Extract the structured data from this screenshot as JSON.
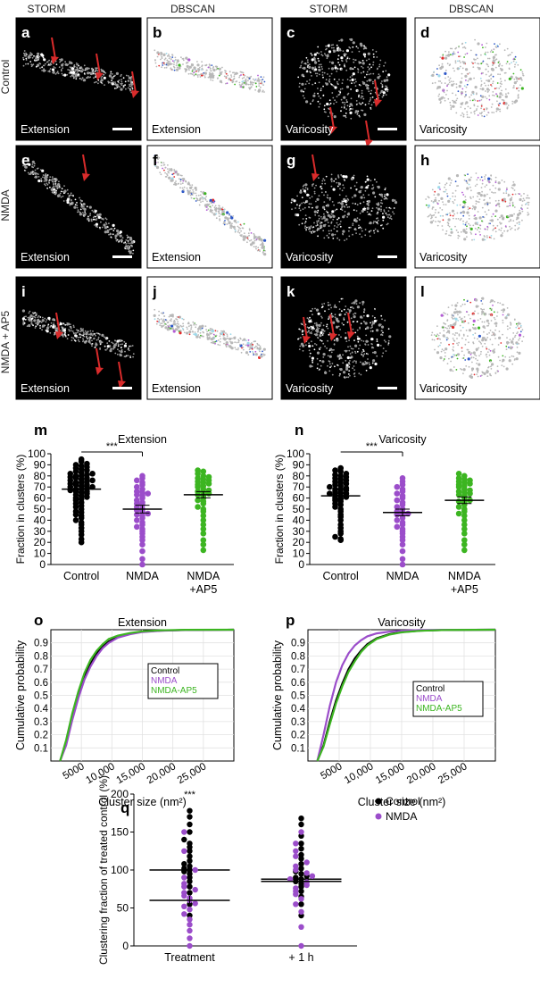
{
  "column_headers": [
    "STORM",
    "DBSCAN",
    "STORM",
    "DBSCAN"
  ],
  "row_labels": [
    "Control",
    "NMDA",
    "NMDA + AP5"
  ],
  "panel_letters": [
    "a",
    "b",
    "c",
    "d",
    "e",
    "f",
    "g",
    "h",
    "i",
    "j",
    "k",
    "l",
    "m",
    "n",
    "o",
    "p",
    "q"
  ],
  "panel_captions": [
    "Extension",
    "Extension",
    "Varicosity",
    "Varicosity"
  ],
  "colors": {
    "control": "#000000",
    "nmda": "#9b4dca",
    "nmda_ap5": "#3cb521",
    "arrow": "#d92b2b",
    "cluster_colors": [
      "#e52b2b",
      "#2e58c8",
      "#3cb521",
      "#b35bd6",
      "#9fd9ea"
    ]
  },
  "chart_data": [
    {
      "panel": "m",
      "type": "scatter",
      "title": "Extension",
      "ylabel": "Fraction in clusters (%)",
      "categories": [
        "Control",
        "NMDA",
        "NMDA\n+AP5"
      ],
      "ylim": [
        0,
        100
      ],
      "yticks": [
        0,
        10,
        20,
        30,
        40,
        50,
        60,
        70,
        80,
        90,
        100
      ],
      "significance": {
        "label": "***",
        "between": [
          0,
          1
        ]
      },
      "series": [
        {
          "color": "#000000",
          "mean": 68,
          "sem": 2.5,
          "values": [
            20,
            23,
            27,
            30,
            33,
            36,
            38,
            40,
            42,
            44,
            45,
            47,
            48,
            50,
            52,
            53,
            55,
            56,
            58,
            59,
            60,
            61,
            62,
            63,
            64,
            65,
            66,
            66,
            67,
            68,
            68,
            69,
            70,
            70,
            71,
            72,
            72,
            73,
            74,
            74,
            75,
            76,
            76,
            77,
            78,
            78,
            79,
            80,
            80,
            81,
            82,
            82,
            83,
            84,
            85,
            86,
            87,
            88,
            89,
            90,
            91,
            93,
            95
          ]
        },
        {
          "color": "#9b4dca",
          "mean": 50,
          "sem": 3.5,
          "values": [
            0,
            5,
            12,
            18,
            22,
            25,
            28,
            30,
            32,
            34,
            36,
            38,
            40,
            42,
            44,
            45,
            46,
            48,
            49,
            50,
            52,
            54,
            55,
            56,
            58,
            60,
            62,
            63,
            64,
            65,
            66,
            68,
            70,
            72,
            74,
            76,
            78,
            80
          ]
        },
        {
          "color": "#3cb521",
          "mean": 63,
          "sem": 2.8,
          "values": [
            13,
            18,
            22,
            28,
            32,
            36,
            40,
            44,
            48,
            50,
            52,
            55,
            57,
            58,
            60,
            62,
            63,
            64,
            65,
            66,
            67,
            68,
            70,
            71,
            72,
            73,
            74,
            75,
            76,
            77,
            78,
            79,
            80,
            82,
            84,
            85
          ]
        }
      ]
    },
    {
      "panel": "n",
      "type": "scatter",
      "title": "Varicosity",
      "ylabel": "Fraction in clusters (%)",
      "categories": [
        "Control",
        "NMDA",
        "NMDA\n+AP5"
      ],
      "ylim": [
        0,
        100
      ],
      "yticks": [
        0,
        10,
        20,
        30,
        40,
        50,
        60,
        70,
        80,
        90,
        100
      ],
      "significance": {
        "label": "***",
        "between": [
          0,
          1
        ]
      },
      "series": [
        {
          "color": "#000000",
          "mean": 62,
          "sem": 2.2,
          "values": [
            22,
            23,
            25,
            28,
            30,
            33,
            36,
            40,
            43,
            45,
            48,
            50,
            52,
            54,
            55,
            57,
            58,
            59,
            60,
            61,
            62,
            63,
            64,
            64,
            65,
            66,
            67,
            68,
            68,
            69,
            70,
            71,
            72,
            73,
            74,
            75,
            76,
            77,
            78,
            79,
            80,
            81,
            82,
            84,
            85,
            87
          ]
        },
        {
          "color": "#9b4dca",
          "mean": 47,
          "sem": 3.0,
          "values": [
            0,
            5,
            12,
            18,
            22,
            25,
            28,
            30,
            32,
            34,
            36,
            38,
            40,
            42,
            44,
            45,
            46,
            47,
            48,
            50,
            52,
            54,
            56,
            58,
            60,
            62,
            64,
            66,
            68,
            70,
            72,
            75,
            78
          ]
        },
        {
          "color": "#3cb521",
          "mean": 58,
          "sem": 3.0,
          "values": [
            13,
            18,
            22,
            28,
            32,
            36,
            40,
            44,
            46,
            48,
            50,
            52,
            54,
            56,
            57,
            58,
            60,
            62,
            63,
            64,
            65,
            66,
            67,
            68,
            70,
            71,
            72,
            73,
            74,
            75,
            76,
            77,
            78,
            80,
            82
          ]
        }
      ]
    },
    {
      "panel": "o",
      "type": "line",
      "title": "Extension",
      "xlabel": "Cluster size (nm²)",
      "ylabel": "Cumulative probability",
      "xlim": [
        0,
        30000
      ],
      "ylim": [
        0,
        1
      ],
      "xticks": [
        5000,
        10000,
        15000,
        20000,
        25000
      ],
      "xtick_labels": [
        "5000",
        "10,000",
        "15,000",
        "20,000",
        "25,000"
      ],
      "yticks": [
        0.1,
        0.2,
        0.3,
        0.4,
        0.5,
        0.6,
        0.7,
        0.8,
        0.9
      ],
      "grid": true,
      "legend": "top-right",
      "series": [
        {
          "name": "Control",
          "color": "#000000",
          "x": [
            1500,
            2500,
            3500,
            4500,
            5500,
            6500,
            7500,
            8500,
            9500,
            11000,
            13000,
            15000,
            18000,
            22000,
            30000
          ],
          "y": [
            0,
            0.14,
            0.33,
            0.5,
            0.64,
            0.74,
            0.82,
            0.87,
            0.91,
            0.945,
            0.97,
            0.985,
            0.993,
            0.998,
            1.0
          ]
        },
        {
          "name": "NMDA",
          "color": "#9b4dca",
          "x": [
            1500,
            2500,
            3500,
            4500,
            5500,
            6500,
            7500,
            8500,
            9500,
            11000,
            13000,
            15000,
            18000,
            22000,
            30000
          ],
          "y": [
            0,
            0.12,
            0.31,
            0.48,
            0.62,
            0.72,
            0.8,
            0.86,
            0.9,
            0.94,
            0.965,
            0.982,
            0.992,
            0.997,
            1.0
          ]
        },
        {
          "name": "NMDA-AP5",
          "color": "#3cb521",
          "x": [
            1500,
            2500,
            3500,
            4500,
            5500,
            6500,
            7500,
            8500,
            9500,
            11000,
            13000,
            15000,
            18000,
            22000,
            30000
          ],
          "y": [
            0,
            0.16,
            0.36,
            0.53,
            0.67,
            0.77,
            0.84,
            0.89,
            0.93,
            0.955,
            0.975,
            0.988,
            0.995,
            0.999,
            1.0
          ]
        }
      ]
    },
    {
      "panel": "p",
      "type": "line",
      "title": "Varicosity",
      "xlabel": "Cluster size (nm²)",
      "ylabel": "Cumulative probability",
      "xlim": [
        0,
        30000
      ],
      "ylim": [
        0,
        1
      ],
      "xticks": [
        5000,
        10000,
        15000,
        20000,
        25000
      ],
      "xtick_labels": [
        "5000",
        "10,000",
        "15,000",
        "20,000",
        "25,000"
      ],
      "yticks": [
        0.1,
        0.2,
        0.3,
        0.4,
        0.5,
        0.6,
        0.7,
        0.8,
        0.9
      ],
      "grid": true,
      "legend": "center-right",
      "series": [
        {
          "name": "Control",
          "color": "#000000",
          "x": [
            1500,
            2500,
            3500,
            4500,
            5500,
            6500,
            7500,
            8500,
            9500,
            11000,
            13000,
            15000,
            18000,
            22000,
            30000
          ],
          "y": [
            0,
            0.12,
            0.3,
            0.46,
            0.59,
            0.7,
            0.78,
            0.84,
            0.89,
            0.935,
            0.965,
            0.982,
            0.993,
            0.998,
            1.0
          ]
        },
        {
          "name": "NMDA",
          "color": "#9b4dca",
          "x": [
            1500,
            2500,
            3500,
            4500,
            5500,
            6500,
            7500,
            8500,
            9500,
            11000,
            13000,
            15000,
            18000,
            22000,
            30000
          ],
          "y": [
            0,
            0.2,
            0.42,
            0.6,
            0.73,
            0.82,
            0.88,
            0.92,
            0.95,
            0.972,
            0.985,
            0.992,
            0.997,
            0.999,
            1.0
          ]
        },
        {
          "name": "NMDA-AP5",
          "color": "#3cb521",
          "x": [
            1500,
            2500,
            3500,
            4500,
            5500,
            6500,
            7500,
            8500,
            9500,
            11000,
            13000,
            15000,
            18000,
            22000,
            30000
          ],
          "y": [
            0,
            0.11,
            0.28,
            0.44,
            0.57,
            0.68,
            0.76,
            0.83,
            0.88,
            0.93,
            0.962,
            0.98,
            0.992,
            0.998,
            1.0
          ]
        }
      ]
    },
    {
      "panel": "q",
      "type": "scatter",
      "ylabel": "Clustering fraction of treated control (%)",
      "categories": [
        "Treatment",
        "+ 1 h"
      ],
      "ylim": [
        0,
        200
      ],
      "yticks": [
        0,
        50,
        100,
        150,
        200
      ],
      "significance": {
        "label": "***",
        "at": 0
      },
      "legend": "top-right",
      "series": [
        {
          "name": "Control",
          "color": "#000000",
          "values": [
            [
              0,
              40
            ],
            [
              0,
              55
            ],
            [
              0,
              70
            ],
            [
              0,
              78
            ],
            [
              0,
              85
            ],
            [
              0,
              90
            ],
            [
              0,
              95
            ],
            [
              0,
              98
            ],
            [
              0,
              100
            ],
            [
              0,
              102
            ],
            [
              0,
              105
            ],
            [
              0,
              108
            ],
            [
              0,
              112
            ],
            [
              0,
              118
            ],
            [
              0,
              125
            ],
            [
              0,
              130
            ],
            [
              0,
              135
            ],
            [
              0,
              140
            ],
            [
              0,
              150
            ],
            [
              0,
              160
            ],
            [
              0,
              170
            ],
            [
              0,
              178
            ],
            [
              1,
              40
            ],
            [
              1,
              55
            ],
            [
              1,
              65
            ],
            [
              1,
              72
            ],
            [
              1,
              78
            ],
            [
              1,
              82
            ],
            [
              1,
              85
            ],
            [
              1,
              88
            ],
            [
              1,
              90
            ],
            [
              1,
              92
            ],
            [
              1,
              95
            ],
            [
              1,
              98
            ],
            [
              1,
              102
            ],
            [
              1,
              108
            ],
            [
              1,
              115
            ],
            [
              1,
              120
            ],
            [
              1,
              128
            ],
            [
              1,
              135
            ],
            [
              1,
              145
            ],
            [
              1,
              160
            ],
            [
              1,
              168
            ]
          ],
          "means": [
            100,
            88
          ]
        },
        {
          "name": "NMDA",
          "color": "#9b4dca",
          "values": [
            [
              0,
              0
            ],
            [
              0,
              10
            ],
            [
              0,
              20
            ],
            [
              0,
              28
            ],
            [
              0,
              35
            ],
            [
              0,
              42
            ],
            [
              0,
              48
            ],
            [
              0,
              52
            ],
            [
              0,
              56
            ],
            [
              0,
              60
            ],
            [
              0,
              63
            ],
            [
              0,
              66
            ],
            [
              0,
              70
            ],
            [
              0,
              74
            ],
            [
              0,
              78
            ],
            [
              0,
              82
            ],
            [
              0,
              90
            ],
            [
              0,
              100
            ],
            [
              0,
              125
            ],
            [
              0,
              150
            ],
            [
              1,
              0
            ],
            [
              1,
              25
            ],
            [
              1,
              45
            ],
            [
              1,
              55
            ],
            [
              1,
              62
            ],
            [
              1,
              68
            ],
            [
              1,
              72
            ],
            [
              1,
              76
            ],
            [
              1,
              80
            ],
            [
              1,
              84
            ],
            [
              1,
              88
            ],
            [
              1,
              92
            ],
            [
              1,
              96
            ],
            [
              1,
              100
            ],
            [
              1,
              105
            ],
            [
              1,
              110
            ],
            [
              1,
              118
            ],
            [
              1,
              125
            ],
            [
              1,
              135
            ],
            [
              1,
              150
            ]
          ],
          "means": [
            60,
            85
          ]
        }
      ]
    }
  ]
}
